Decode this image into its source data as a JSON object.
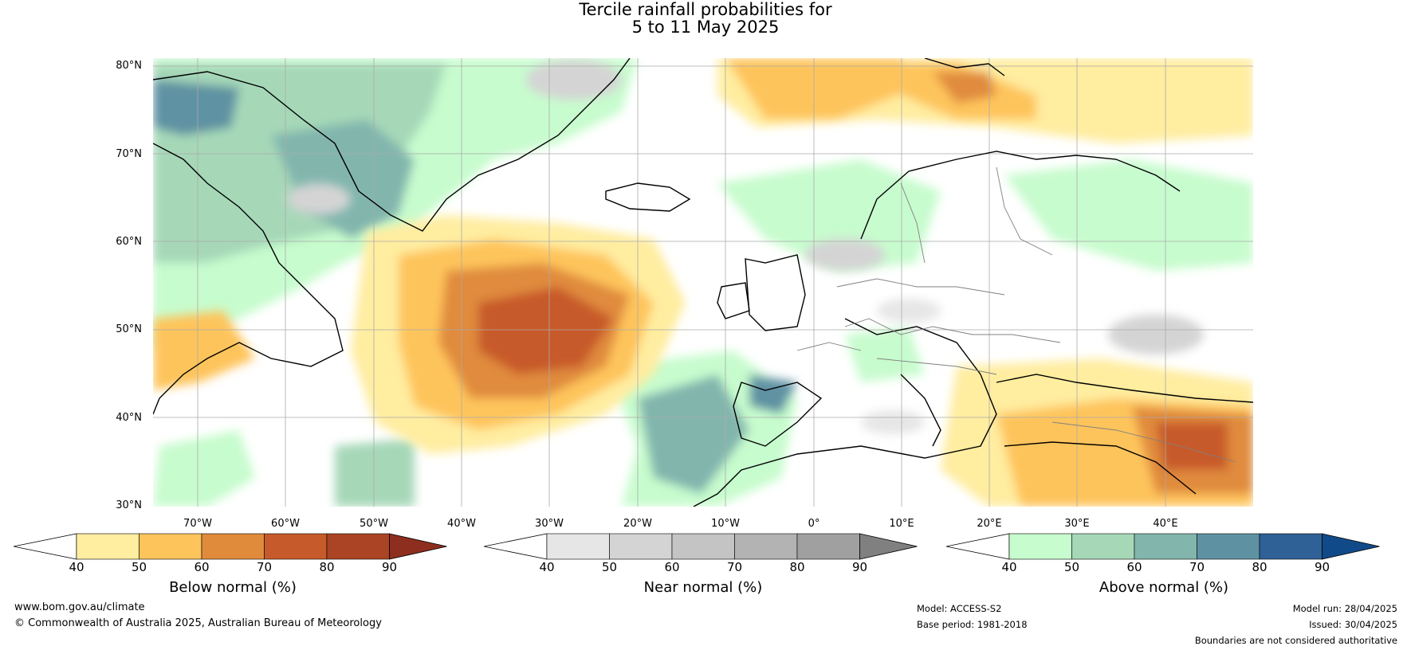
{
  "title": {
    "line1": "Tercile rainfall probabilities for",
    "line2": "5 to 11 May 2025"
  },
  "map": {
    "lat_labels": [
      "80°N",
      "70°N",
      "60°N",
      "50°N",
      "40°N",
      "30°N"
    ],
    "lon_labels": [
      "70°W",
      "60°W",
      "50°W",
      "40°W",
      "30°W",
      "20°W",
      "10°W",
      "0°",
      "10°E",
      "20°E",
      "30°E",
      "40°E"
    ]
  },
  "colorbars": [
    {
      "title": "Below normal (%)",
      "ticks": [
        "40",
        "50",
        "60",
        "70",
        "80",
        "90"
      ],
      "colors": [
        "#ffffff",
        "#ffeda0",
        "#fec45c",
        "#e08b3c",
        "#c75a2a",
        "#aa4424",
        "#8e2e1e"
      ]
    },
    {
      "title": "Near normal (%)",
      "ticks": [
        "40",
        "50",
        "60",
        "70",
        "80",
        "90"
      ],
      "colors": [
        "#ffffff",
        "#e6e6e6",
        "#d4d4d4",
        "#c4c4c4",
        "#b3b3b3",
        "#a0a0a0",
        "#808080"
      ]
    },
    {
      "title": "Above normal (%)",
      "ticks": [
        "40",
        "50",
        "60",
        "70",
        "80",
        "90"
      ],
      "colors": [
        "#ffffff",
        "#c7fcce",
        "#a6d8b8",
        "#82b6ad",
        "#5e92a3",
        "#2f6096",
        "#114a88"
      ]
    }
  ],
  "footer": {
    "website": "www.bom.gov.au/climate",
    "copyright": "© Commonwealth of Australia 2025, Australian Bureau of Meteorology",
    "model": "Model: ACCESS-S2",
    "base_period": "Base period: 1981-2018",
    "model_run": "Model run: 28/04/2025",
    "issued": "Issued: 30/04/2025",
    "disclaimer": "Boundaries are not considered authoritative"
  }
}
